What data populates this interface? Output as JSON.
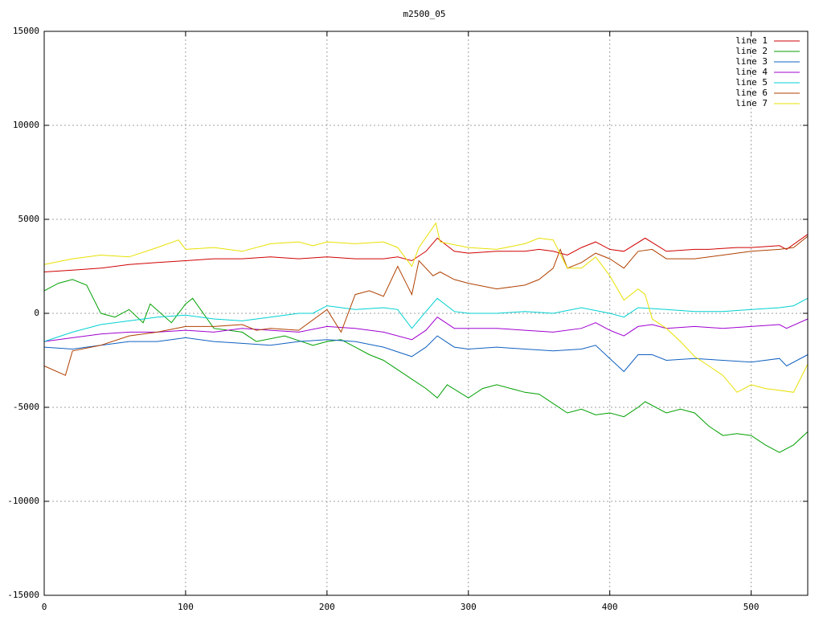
{
  "chart_data": {
    "type": "line",
    "title": "m2500_05",
    "xlim": [
      0,
      540
    ],
    "ylim": [
      -15000,
      15000
    ],
    "xticks": [
      0,
      100,
      200,
      300,
      400,
      500
    ],
    "yticks": [
      -15000,
      -10000,
      -5000,
      0,
      5000,
      10000,
      15000
    ],
    "grid": true,
    "legend": "top-right",
    "series": [
      {
        "name": "line 1",
        "color": "#d00000",
        "x": [
          0,
          20,
          40,
          60,
          80,
          100,
          120,
          140,
          160,
          180,
          200,
          220,
          240,
          250,
          260,
          270,
          278,
          290,
          300,
          320,
          340,
          350,
          360,
          370,
          380,
          390,
          400,
          410,
          425,
          440,
          460,
          470,
          490,
          500,
          520,
          525,
          540
        ],
        "values": [
          2200,
          2300,
          2400,
          2600,
          2700,
          2800,
          2900,
          2900,
          3000,
          2900,
          3000,
          2900,
          2900,
          3000,
          2800,
          3300,
          4000,
          3300,
          3200,
          3300,
          3300,
          3400,
          3300,
          3100,
          3500,
          3800,
          3400,
          3300,
          4000,
          3300,
          3400,
          3400,
          3500,
          3500,
          3600,
          3400,
          4200
        ]
      },
      {
        "name": "line 2",
        "color": "#00a000",
        "x": [
          0,
          10,
          20,
          30,
          40,
          50,
          60,
          70,
          75,
          90,
          100,
          105,
          120,
          140,
          150,
          170,
          190,
          200,
          210,
          220,
          230,
          240,
          250,
          260,
          270,
          278,
          285,
          300,
          310,
          320,
          340,
          350,
          360,
          370,
          380,
          390,
          400,
          410,
          420,
          425,
          440,
          450,
          460,
          470,
          480,
          490,
          500,
          510,
          520,
          530,
          540
        ],
        "values": [
          1200,
          1600,
          1800,
          1500,
          0,
          -200,
          200,
          -500,
          500,
          -500,
          500,
          800,
          -800,
          -1000,
          -1500,
          -1200,
          -1700,
          -1500,
          -1400,
          -1800,
          -2200,
          -2500,
          -3000,
          -3500,
          -4000,
          -4500,
          -3800,
          -4500,
          -4000,
          -3800,
          -4200,
          -4300,
          -4800,
          -5300,
          -5100,
          -5400,
          -5300,
          -5500,
          -5000,
          -4700,
          -5300,
          -5100,
          -5300,
          -6000,
          -6500,
          -6400,
          -6500,
          -7000,
          -7400,
          -7000,
          -6300
        ]
      },
      {
        "name": "line 3",
        "color": "#1060c0",
        "x": [
          0,
          20,
          40,
          60,
          80,
          100,
          120,
          140,
          160,
          180,
          200,
          220,
          240,
          260,
          270,
          278,
          290,
          300,
          320,
          340,
          360,
          380,
          390,
          400,
          410,
          420,
          430,
          440,
          460,
          480,
          500,
          520,
          525,
          540
        ],
        "values": [
          -1800,
          -1900,
          -1700,
          -1500,
          -1500,
          -1300,
          -1500,
          -1600,
          -1700,
          -1500,
          -1400,
          -1500,
          -1800,
          -2300,
          -1800,
          -1200,
          -1800,
          -1900,
          -1800,
          -1900,
          -2000,
          -1900,
          -1700,
          -2400,
          -3100,
          -2200,
          -2200,
          -2500,
          -2400,
          -2500,
          -2600,
          -2400,
          -2800,
          -2200
        ]
      },
      {
        "name": "line 4",
        "color": "#a000d0",
        "x": [
          0,
          20,
          40,
          60,
          80,
          100,
          120,
          140,
          160,
          180,
          200,
          220,
          240,
          260,
          270,
          278,
          290,
          300,
          320,
          340,
          360,
          380,
          390,
          400,
          410,
          420,
          430,
          440,
          460,
          480,
          500,
          520,
          525,
          540
        ],
        "values": [
          -1500,
          -1300,
          -1100,
          -1000,
          -1000,
          -900,
          -1000,
          -800,
          -900,
          -1000,
          -700,
          -800,
          -1000,
          -1400,
          -900,
          -200,
          -800,
          -800,
          -800,
          -900,
          -1000,
          -800,
          -500,
          -900,
          -1200,
          -700,
          -600,
          -800,
          -700,
          -800,
          -700,
          -600,
          -800,
          -300
        ]
      },
      {
        "name": "line 5",
        "color": "#00d0d0",
        "x": [
          0,
          20,
          40,
          60,
          80,
          100,
          120,
          140,
          160,
          180,
          190,
          200,
          220,
          240,
          250,
          260,
          270,
          278,
          290,
          300,
          320,
          340,
          360,
          380,
          400,
          410,
          420,
          440,
          460,
          480,
          500,
          520,
          530,
          540
        ],
        "values": [
          -1500,
          -1000,
          -600,
          -400,
          -200,
          -100,
          -300,
          -400,
          -200,
          0,
          0,
          400,
          200,
          300,
          200,
          -800,
          100,
          800,
          100,
          0,
          0,
          100,
          0,
          300,
          0,
          -200,
          300,
          200,
          100,
          100,
          200,
          300,
          400,
          800
        ]
      },
      {
        "name": "line 6",
        "color": "#b04000",
        "x": [
          0,
          15,
          20,
          40,
          60,
          80,
          100,
          120,
          140,
          150,
          160,
          180,
          200,
          210,
          220,
          230,
          240,
          250,
          260,
          265,
          275,
          280,
          290,
          300,
          320,
          340,
          350,
          360,
          365,
          370,
          380,
          390,
          400,
          410,
          420,
          430,
          440,
          460,
          480,
          500,
          520,
          530,
          540
        ],
        "values": [
          -2800,
          -3300,
          -2000,
          -1700,
          -1200,
          -1000,
          -700,
          -700,
          -600,
          -900,
          -800,
          -900,
          200,
          -1000,
          1000,
          1200,
          900,
          2500,
          1000,
          2800,
          2000,
          2200,
          1800,
          1600,
          1300,
          1500,
          1800,
          2400,
          3400,
          2400,
          2700,
          3200,
          2900,
          2400,
          3300,
          3400,
          2900,
          2900,
          3100,
          3300,
          3400,
          3500,
          4100
        ]
      },
      {
        "name": "line 7",
        "color": "#e8e000",
        "x": [
          0,
          20,
          40,
          60,
          80,
          95,
          100,
          120,
          140,
          160,
          180,
          190,
          200,
          220,
          240,
          250,
          260,
          265,
          277,
          280,
          300,
          320,
          340,
          350,
          360,
          370,
          380,
          390,
          400,
          410,
          420,
          425,
          430,
          440,
          450,
          460,
          470,
          480,
          490,
          500,
          510,
          520,
          530,
          540
        ],
        "values": [
          2600,
          2900,
          3100,
          3000,
          3500,
          3900,
          3400,
          3500,
          3300,
          3700,
          3800,
          3600,
          3800,
          3700,
          3800,
          3500,
          2500,
          3500,
          4800,
          3800,
          3500,
          3400,
          3700,
          4000,
          3900,
          2400,
          2400,
          3000,
          2000,
          700,
          1300,
          1000,
          -300,
          -800,
          -1500,
          -2300,
          -2800,
          -3300,
          -4200,
          -3800,
          -4000,
          -4100,
          -4200,
          -2700
        ]
      }
    ]
  }
}
